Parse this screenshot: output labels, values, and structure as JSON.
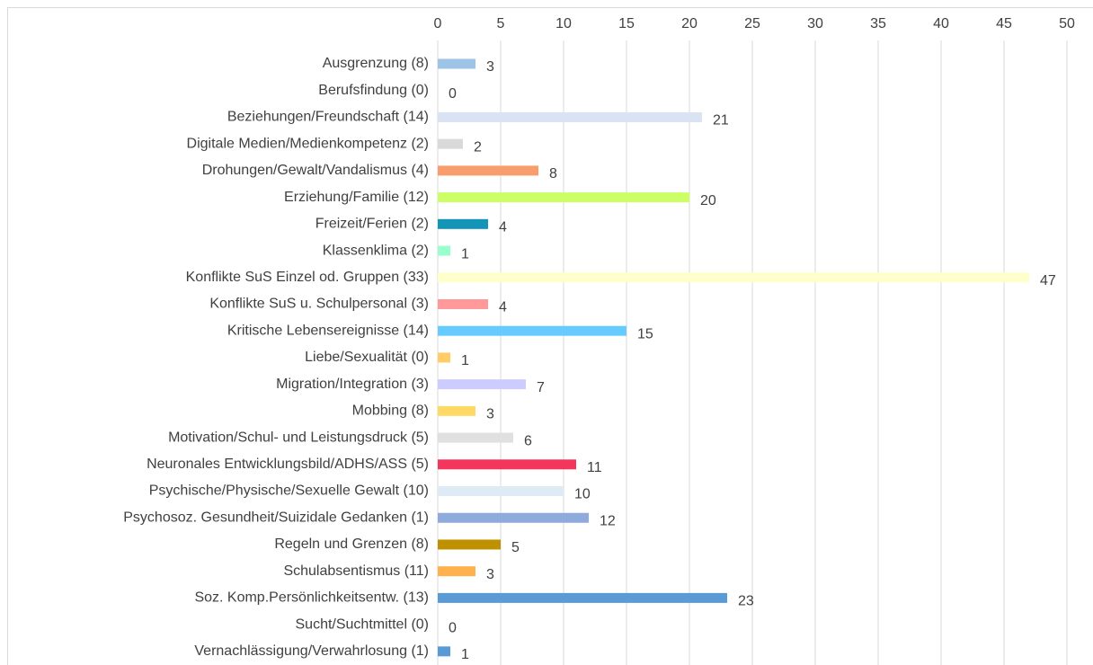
{
  "chart_data": {
    "type": "bar",
    "orientation": "horizontal",
    "categories": [
      "Ausgrenzung (8)",
      "Berufsfindung (0)",
      "Beziehungen/Freundschaft (14)",
      "Digitale Medien/Medienkompetenz (2)",
      "Drohungen/Gewalt/Vandalismus (4)",
      "Erziehung/Familie (12)",
      "Freizeit/Ferien (2)",
      "Klassenklima (2)",
      "Konflikte SuS Einzel od. Gruppen (33)",
      "Konflikte SuS u. Schulpersonal (3)",
      "Kritische Lebensereignisse (14)",
      "Liebe/Sexualität (0)",
      "Migration/Integration (3)",
      "Mobbing (8)",
      "Motivation/Schul- und Leistungsdruck (5)",
      "Neuronales Entwicklungsbild/ADHS/ASS (5)",
      "Psychische/Physische/Sexuelle Gewalt (10)",
      "Psychosoz. Gesundheit/Suizidale Gedanken (1)",
      "Regeln und Grenzen (8)",
      "Schulabsentismus (11)",
      "Soz. Komp.Persönlichkeitsentw. (13)",
      "Sucht/Suchtmittel (0)",
      "Vernachlässigung/Verwahrlosung (1)"
    ],
    "values": [
      3,
      0,
      21,
      2,
      8,
      20,
      4,
      1,
      47,
      4,
      15,
      1,
      7,
      3,
      6,
      11,
      10,
      12,
      5,
      3,
      23,
      0,
      1
    ],
    "colors": [
      "#9dc3e6",
      "#a9d18e",
      "#dae3f3",
      "#d9d9d9",
      "#f79e6c",
      "#ccff66",
      "#1495b8",
      "#99ffcc",
      "#ffffcc",
      "#ff9999",
      "#66ccff",
      "#ffcc66",
      "#ccccff",
      "#ffd966",
      "#e0e0e0",
      "#f4365c",
      "#deebf7",
      "#8faadc",
      "#bf9000",
      "#ffb14e",
      "#5b9bd5",
      "#a9d18e",
      "#5b9bd5"
    ],
    "xlim": [
      0,
      50
    ],
    "xticks": [
      0,
      5,
      10,
      15,
      20,
      25,
      30,
      35,
      40,
      45,
      50
    ],
    "grid": true
  }
}
